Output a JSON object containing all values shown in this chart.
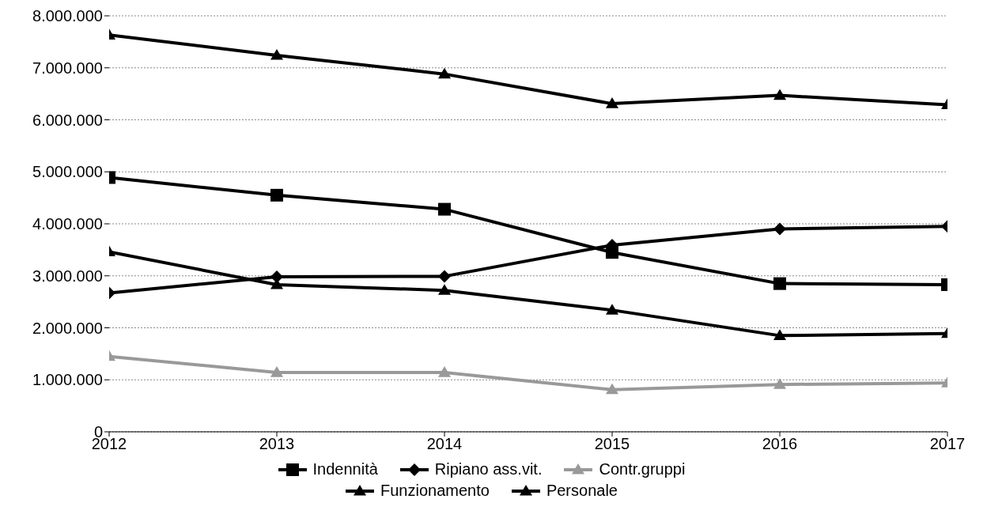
{
  "chart_data": {
    "type": "line",
    "categories": [
      "2012",
      "2013",
      "2014",
      "2015",
      "2016",
      "2017"
    ],
    "series": [
      {
        "name": "Indennità",
        "color": "#000000",
        "marker": "square",
        "values": [
          4890000,
          4550000,
          4280000,
          3450000,
          2850000,
          2830000
        ]
      },
      {
        "name": "Ripiano ass.vit.",
        "color": "#000000",
        "marker": "diamond",
        "values": [
          2670000,
          2980000,
          2990000,
          3590000,
          3900000,
          3950000
        ]
      },
      {
        "name": "Contr.gruppi",
        "color": "#999999",
        "marker": "triangle",
        "values": [
          1450000,
          1140000,
          1140000,
          810000,
          910000,
          940000
        ]
      },
      {
        "name": "Funzionamento",
        "color": "#000000",
        "marker": "triangle",
        "values": [
          3460000,
          2830000,
          2720000,
          2340000,
          1850000,
          1890000
        ]
      },
      {
        "name": "Personale",
        "color": "#000000",
        "marker": "triangle",
        "values": [
          7630000,
          7240000,
          6880000,
          6310000,
          6470000,
          6290000
        ]
      }
    ],
    "ylim": [
      0,
      8000000
    ],
    "yticks": [
      {
        "value": 0,
        "label": "0"
      },
      {
        "value": 1000000,
        "label": "1.000.000"
      },
      {
        "value": 2000000,
        "label": "2.000.000"
      },
      {
        "value": 3000000,
        "label": "3.000.000"
      },
      {
        "value": 4000000,
        "label": "4.000.000"
      },
      {
        "value": 5000000,
        "label": "5.000.000"
      },
      {
        "value": 6000000,
        "label": "6.000.000"
      },
      {
        "value": 7000000,
        "label": "7.000.000"
      },
      {
        "value": 8000000,
        "label": "8.000.000"
      }
    ],
    "grid": "y",
    "legend": "bottom",
    "line_style": "solid"
  }
}
